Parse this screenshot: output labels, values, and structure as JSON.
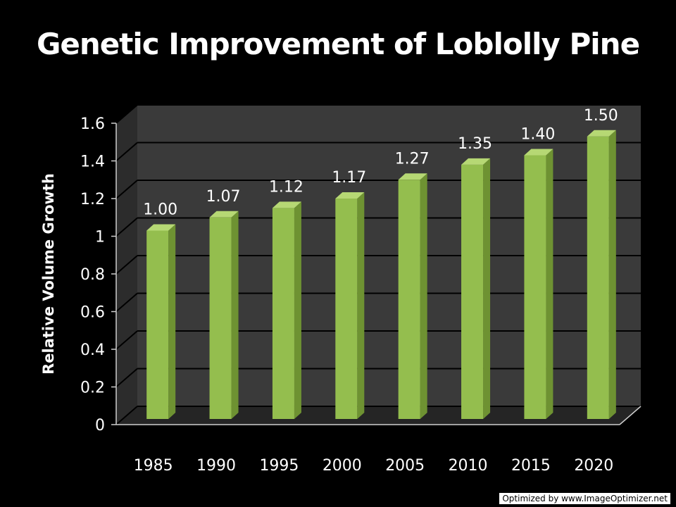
{
  "chart_data": {
    "type": "bar",
    "title": "Genetic Improvement of Loblolly Pine",
    "xlabel": "",
    "ylabel": "Relative Volume Growth",
    "categories": [
      "1985",
      "1990",
      "1995",
      "2000",
      "2005",
      "2010",
      "2015",
      "2020"
    ],
    "values": [
      1.0,
      1.07,
      1.12,
      1.17,
      1.27,
      1.35,
      1.4,
      1.5
    ],
    "data_labels": [
      "1.00",
      "1.07",
      "1.12",
      "1.17",
      "1.27",
      "1.35",
      "1.40",
      "1.50"
    ],
    "ylim": [
      0,
      1.6
    ],
    "yticks": [
      0,
      0.2,
      0.4,
      0.6,
      0.8,
      1,
      1.2,
      1.4,
      1.6
    ],
    "ytick_labels": [
      "0",
      "0.2",
      "0.4",
      "0.6",
      "0.8",
      "1",
      "1.2",
      "1.4",
      "1.6"
    ],
    "grid": true,
    "style": "3d-column",
    "colors": {
      "background": "#000000",
      "plot_back": "#3a3a3a",
      "plot_side": "#2c2c2c",
      "floor": "#252525",
      "grid": "#000000",
      "bar_front": "#94be4e",
      "bar_top": "#b6d874",
      "bar_side": "#6e9232",
      "text": "#ffffff"
    }
  },
  "footer": {
    "watermark": "Optimized by www.ImageOptimizer.net"
  }
}
